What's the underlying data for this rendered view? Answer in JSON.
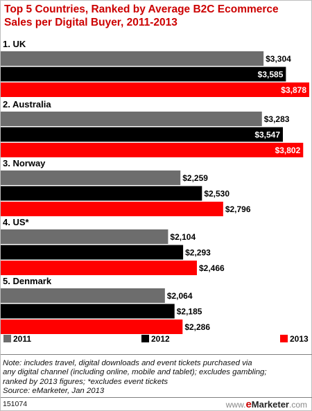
{
  "chart_data": {
    "type": "bar",
    "orientation": "horizontal",
    "title": "Top 5 Countries, Ranked by Average B2C Ecommerce Sales per Digital Buyer, 2011-2013",
    "categories": [
      "1. UK",
      "2. Australia",
      "3. Norway",
      "4. US*",
      "5. Denmark"
    ],
    "series": [
      {
        "name": "2011",
        "color": "#6d6d6d",
        "values": [
          3304,
          3283,
          2259,
          2104,
          2064
        ],
        "labels": [
          "$3,304",
          "$3,283",
          "$2,259",
          "$2,104",
          "$2,064"
        ]
      },
      {
        "name": "2012",
        "color": "#000000",
        "values": [
          3585,
          3547,
          2530,
          2293,
          2185
        ],
        "labels": [
          "$3,585",
          "$3,547",
          "$2,530",
          "$2,293",
          "$2,185"
        ]
      },
      {
        "name": "2013",
        "color": "#ff0000",
        "values": [
          3878,
          3802,
          2796,
          2466,
          2286
        ],
        "labels": [
          "$3,878",
          "$3,802",
          "$2,796",
          "$2,466",
          "$2,286"
        ]
      }
    ],
    "xlim": [
      0,
      3878
    ],
    "grid": false,
    "legend_position": "bottom"
  },
  "notes": {
    "line1": "Note: includes travel, digital downloads and event tickets purchased via",
    "line2": "any digital channel (including online, mobile and tablet); excludes gambling;",
    "line3": "ranked by 2013 figures; *excludes event tickets",
    "source": "Source: eMarketer, Jan 2013"
  },
  "footer": {
    "id": "151074",
    "logo_prefix": "www.",
    "logo_e": "e",
    "logo_main": "Marketer",
    "logo_suffix": ".com"
  }
}
